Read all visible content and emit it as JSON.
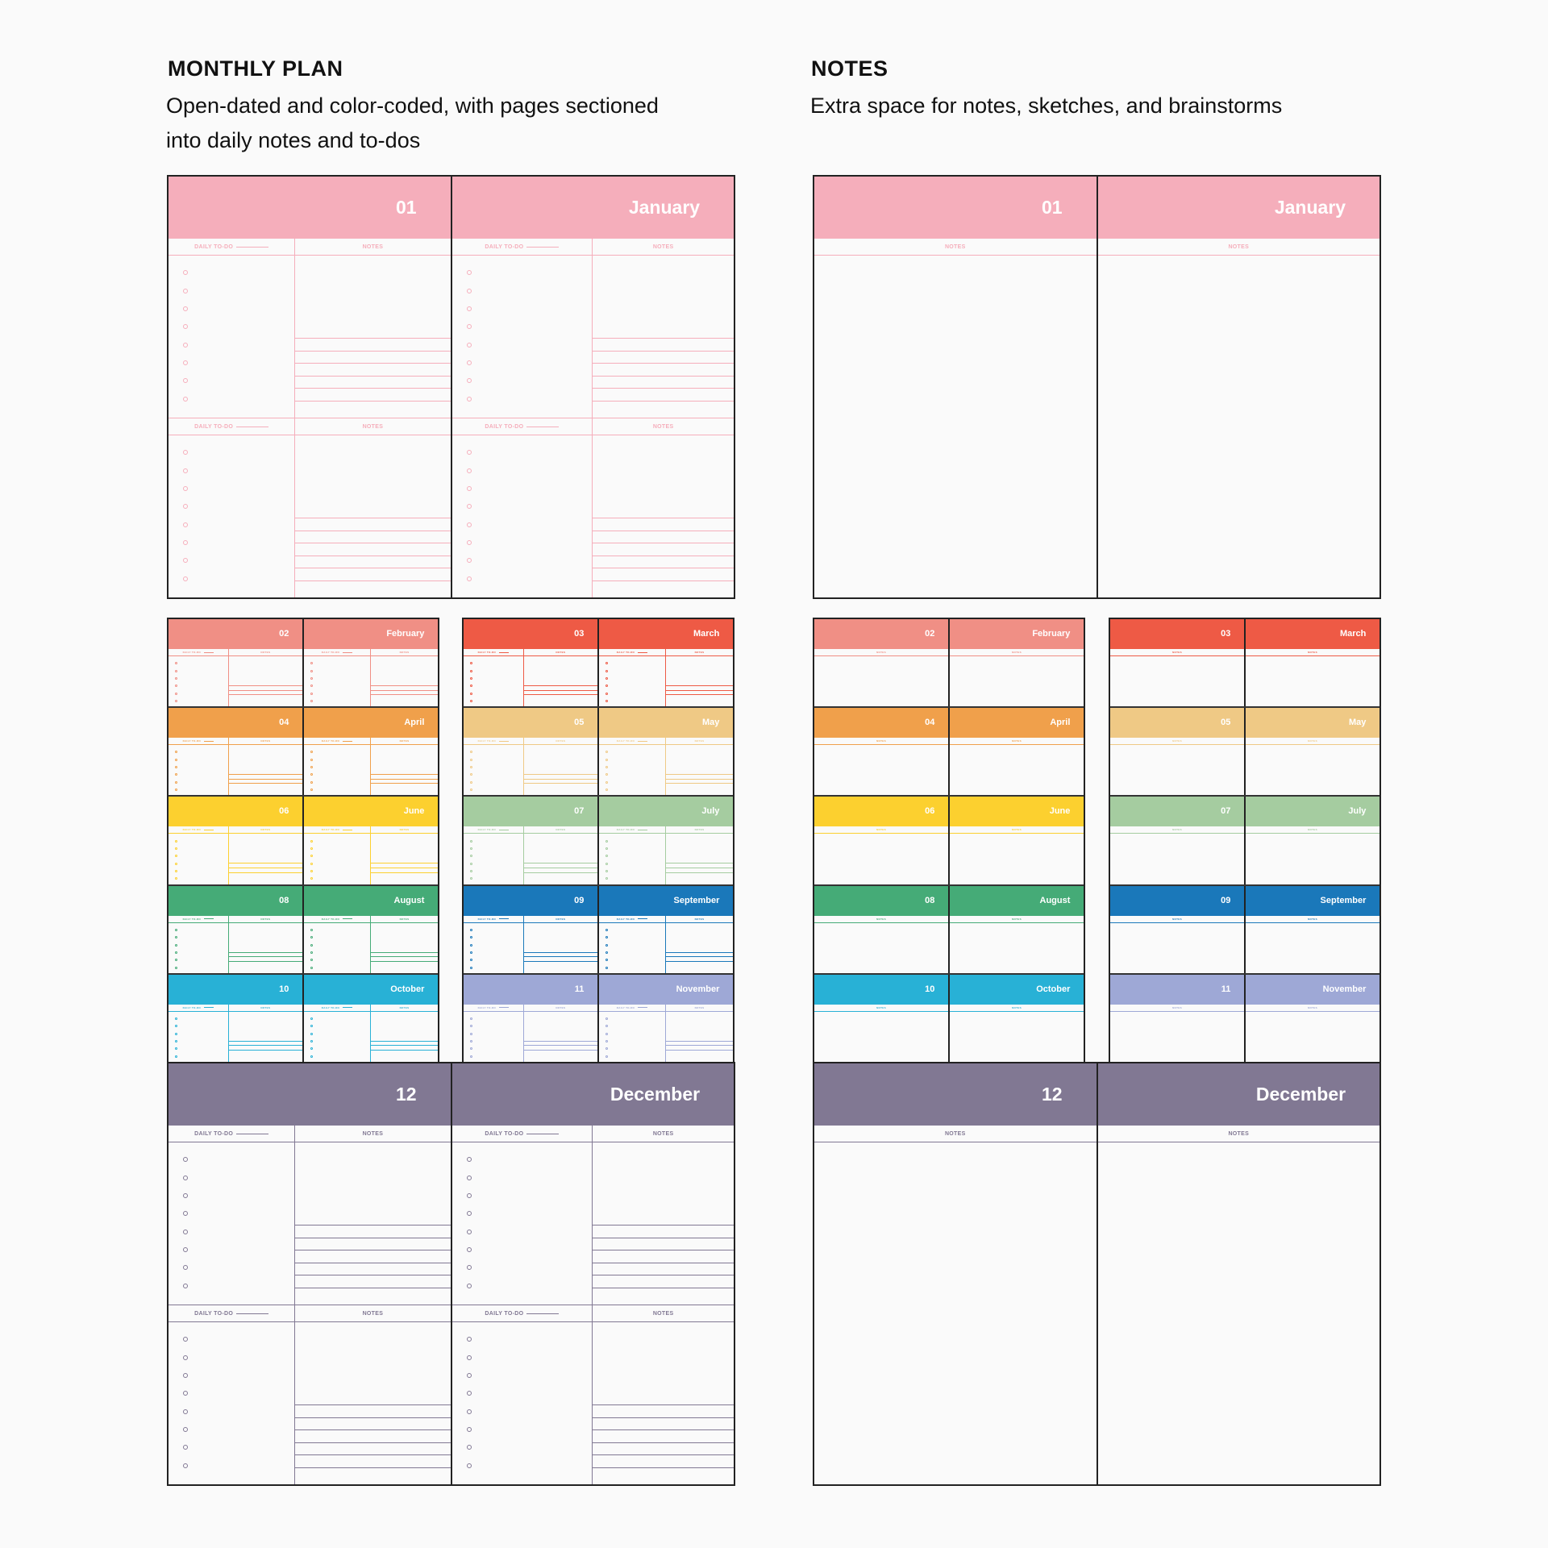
{
  "monthly_plan": {
    "title": "MONTHLY PLAN",
    "subtitle_line1": "Open-dated and color-coded, with pages sectioned",
    "subtitle_line2": "into daily notes and to-dos"
  },
  "notes": {
    "title": "NOTES",
    "subtitle": "Extra space for notes, sketches, and brainstorms"
  },
  "labels": {
    "daily_todo": "DAILY TO-DO",
    "notes": "NOTES"
  },
  "months": [
    {
      "number": "01",
      "name": "January",
      "color": "#f5aebb"
    },
    {
      "number": "02",
      "name": "February",
      "color": "#f08f85"
    },
    {
      "number": "03",
      "name": "March",
      "color": "#ee5a45"
    },
    {
      "number": "04",
      "name": "April",
      "color": "#f0a04b"
    },
    {
      "number": "05",
      "name": "May",
      "color": "#efc985"
    },
    {
      "number": "06",
      "name": "June",
      "color": "#fcd02f"
    },
    {
      "number": "07",
      "name": "July",
      "color": "#a5cca0"
    },
    {
      "number": "08",
      "name": "August",
      "color": "#45ab77"
    },
    {
      "number": "09",
      "name": "September",
      "color": "#1a78ba"
    },
    {
      "number": "10",
      "name": "October",
      "color": "#28b1d6"
    },
    {
      "number": "11",
      "name": "November",
      "color": "#9ea8d6"
    },
    {
      "number": "12",
      "name": "December",
      "color": "#817893"
    }
  ]
}
